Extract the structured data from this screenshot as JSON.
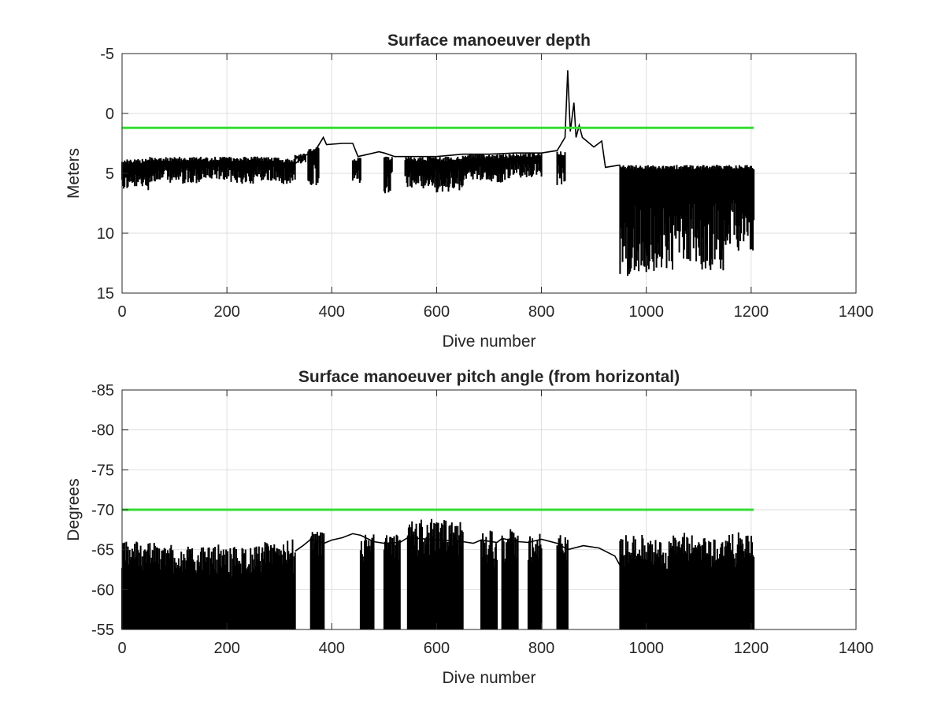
{
  "chart_data": [
    {
      "type": "line",
      "title": "Surface manoeuver depth",
      "xlabel": "Dive number",
      "ylabel": "Meters",
      "xlim": [
        0,
        1400
      ],
      "ylim": [
        -5,
        15
      ],
      "y_reversed": true,
      "xticks": [
        "0",
        "200",
        "400",
        "600",
        "800",
        "1000",
        "1200",
        "1400"
      ],
      "yticks": [
        "-5",
        "0",
        "5",
        "10",
        "15"
      ],
      "grid": true,
      "colors": {
        "data": "#000000",
        "threshold": "#33dd33",
        "grid": "#dedede"
      },
      "threshold": {
        "value": 1.2,
        "x": [
          0,
          1205
        ]
      },
      "series": [
        {
          "segments": [
            {
              "x": [
                0,
                50
              ],
              "y_low": 3.8,
              "y_high": 6.4
            },
            {
              "x": [
                50,
                100
              ],
              "y_low": 3.6,
              "y_high": 5.8
            },
            {
              "x": [
                100,
                150
              ],
              "y_low": 3.6,
              "y_high": 5.9
            },
            {
              "x": [
                150,
                200
              ],
              "y_low": 3.6,
              "y_high": 5.6
            },
            {
              "x": [
                200,
                250
              ],
              "y_low": 3.6,
              "y_high": 5.9
            },
            {
              "x": [
                250,
                300
              ],
              "y_low": 3.6,
              "y_high": 5.7
            },
            {
              "x": [
                300,
                330
              ],
              "y_low": 3.7,
              "y_high": 5.9
            },
            {
              "x": [
                330,
                350
              ],
              "y_low": 3.3,
              "y_high": 4.2
            },
            {
              "x": [
                355,
                375
              ],
              "y_low": 2.8,
              "y_high": 6.2
            },
            {
              "x": [
                440,
                455
              ],
              "y_low": 3.7,
              "y_high": 5.9
            },
            {
              "x": [
                500,
                515
              ],
              "y_low": 3.6,
              "y_high": 6.8
            },
            {
              "x": [
                540,
                600
              ],
              "y_low": 3.6,
              "y_high": 6.3
            },
            {
              "x": [
                600,
                650
              ],
              "y_low": 3.6,
              "y_high": 6.6
            },
            {
              "x": [
                650,
                700
              ],
              "y_low": 3.4,
              "y_high": 5.6
            },
            {
              "x": [
                700,
                740
              ],
              "y_low": 3.4,
              "y_high": 5.8
            },
            {
              "x": [
                740,
                800
              ],
              "y_low": 3.3,
              "y_high": 5.4
            },
            {
              "x": [
                830,
                845
              ],
              "y_low": 3.1,
              "y_high": 6.0
            },
            {
              "x": [
                950,
                1000
              ],
              "y_low": 4.3,
              "y_high": 13.6
            },
            {
              "x": [
                1000,
                1050
              ],
              "y_low": 4.3,
              "y_high": 13.2
            },
            {
              "x": [
                1050,
                1100
              ],
              "y_low": 4.3,
              "y_high": 12.5
            },
            {
              "x": [
                1100,
                1150
              ],
              "y_low": 4.3,
              "y_high": 13.2
            },
            {
              "x": [
                1150,
                1205
              ],
              "y_low": 4.3,
              "y_high": 11.5
            }
          ],
          "baseline": [
            [
              330,
              4.2
            ],
            [
              350,
              3.5
            ],
            [
              370,
              3.0
            ],
            [
              384,
              2.0
            ],
            [
              390,
              2.6
            ],
            [
              420,
              2.5
            ],
            [
              440,
              2.5
            ],
            [
              450,
              3.6
            ],
            [
              470,
              3.4
            ],
            [
              490,
              3.2
            ],
            [
              500,
              3.3
            ],
            [
              520,
              3.6
            ],
            [
              540,
              3.6
            ],
            [
              600,
              3.6
            ],
            [
              650,
              3.4
            ],
            [
              700,
              3.4
            ],
            [
              750,
              3.3
            ],
            [
              800,
              3.3
            ],
            [
              830,
              3.1
            ],
            [
              845,
              2.0
            ],
            [
              850,
              -3.6
            ],
            [
              855,
              1.5
            ],
            [
              862,
              -0.9
            ],
            [
              866,
              2.0
            ],
            [
              872,
              1.0
            ],
            [
              878,
              2.0
            ],
            [
              900,
              2.8
            ],
            [
              915,
              2.3
            ],
            [
              922,
              4.5
            ],
            [
              950,
              4.3
            ]
          ]
        }
      ]
    },
    {
      "type": "line",
      "title": "Surface manoeuver pitch angle (from horizontal)",
      "xlabel": "Dive number",
      "ylabel": "Degrees",
      "xlim": [
        0,
        1400
      ],
      "ylim": [
        -85,
        -55
      ],
      "xticks": [
        "0",
        "200",
        "400",
        "600",
        "800",
        "1000",
        "1200",
        "1400"
      ],
      "yticks": [
        "-55",
        "-60",
        "-65",
        "-70",
        "-75",
        "-80",
        "-85"
      ],
      "grid": true,
      "colors": {
        "data": "#000000",
        "threshold": "#33dd33",
        "grid": "#dedede"
      },
      "threshold": {
        "value": -70,
        "x": [
          0,
          1205
        ]
      },
      "series": [
        {
          "segments": [
            {
              "x": [
                0,
                50
              ],
              "y_low": -66.5,
              "y_high": -55
            },
            {
              "x": [
                50,
                100
              ],
              "y_low": -66.0,
              "y_high": -55
            },
            {
              "x": [
                100,
                150
              ],
              "y_low": -65.5,
              "y_high": -55
            },
            {
              "x": [
                150,
                200
              ],
              "y_low": -65.7,
              "y_high": -55
            },
            {
              "x": [
                200,
                250
              ],
              "y_low": -65.5,
              "y_high": -55
            },
            {
              "x": [
                250,
                300
              ],
              "y_low": -66.0,
              "y_high": -55
            },
            {
              "x": [
                300,
                330
              ],
              "y_low": -66.5,
              "y_high": -55
            },
            {
              "x": [
                360,
                385
              ],
              "y_low": -67.5,
              "y_high": -55
            },
            {
              "x": [
                455,
                480
              ],
              "y_low": -67.2,
              "y_high": -55
            },
            {
              "x": [
                500,
                530
              ],
              "y_low": -67.3,
              "y_high": -55
            },
            {
              "x": [
                545,
                600
              ],
              "y_low": -69.0,
              "y_high": -55
            },
            {
              "x": [
                600,
                650
              ],
              "y_low": -68.8,
              "y_high": -55
            },
            {
              "x": [
                685,
                715
              ],
              "y_low": -67.5,
              "y_high": -55
            },
            {
              "x": [
                725,
                755
              ],
              "y_low": -67.7,
              "y_high": -55
            },
            {
              "x": [
                775,
                800
              ],
              "y_low": -67.4,
              "y_high": -55
            },
            {
              "x": [
                830,
                850
              ],
              "y_low": -67.2,
              "y_high": -55
            },
            {
              "x": [
                950,
                1000
              ],
              "y_low": -67.0,
              "y_high": -55
            },
            {
              "x": [
                1000,
                1050
              ],
              "y_low": -66.5,
              "y_high": -55
            },
            {
              "x": [
                1050,
                1100
              ],
              "y_low": -67.2,
              "y_high": -55
            },
            {
              "x": [
                1100,
                1150
              ],
              "y_low": -67.0,
              "y_high": -55
            },
            {
              "x": [
                1150,
                1205
              ],
              "y_low": -67.2,
              "y_high": -55
            }
          ],
          "baseline": [
            [
              330,
              -64.8
            ],
            [
              345,
              -65.5
            ],
            [
              360,
              -66.3
            ],
            [
              385,
              -65.8
            ],
            [
              400,
              -66.2
            ],
            [
              420,
              -66.5
            ],
            [
              440,
              -67.0
            ],
            [
              455,
              -66.8
            ],
            [
              480,
              -66.0
            ],
            [
              500,
              -65.8
            ],
            [
              530,
              -65.9
            ],
            [
              545,
              -66.5
            ],
            [
              650,
              -66.0
            ],
            [
              670,
              -65.8
            ],
            [
              685,
              -66.2
            ],
            [
              715,
              -65.9
            ],
            [
              725,
              -66.4
            ],
            [
              755,
              -66.0
            ],
            [
              775,
              -65.9
            ],
            [
              800,
              -66.3
            ],
            [
              830,
              -65.8
            ],
            [
              850,
              -65.0
            ],
            [
              880,
              -65.5
            ],
            [
              910,
              -65.2
            ],
            [
              940,
              -64.2
            ],
            [
              950,
              -63.0
            ]
          ]
        }
      ]
    }
  ]
}
